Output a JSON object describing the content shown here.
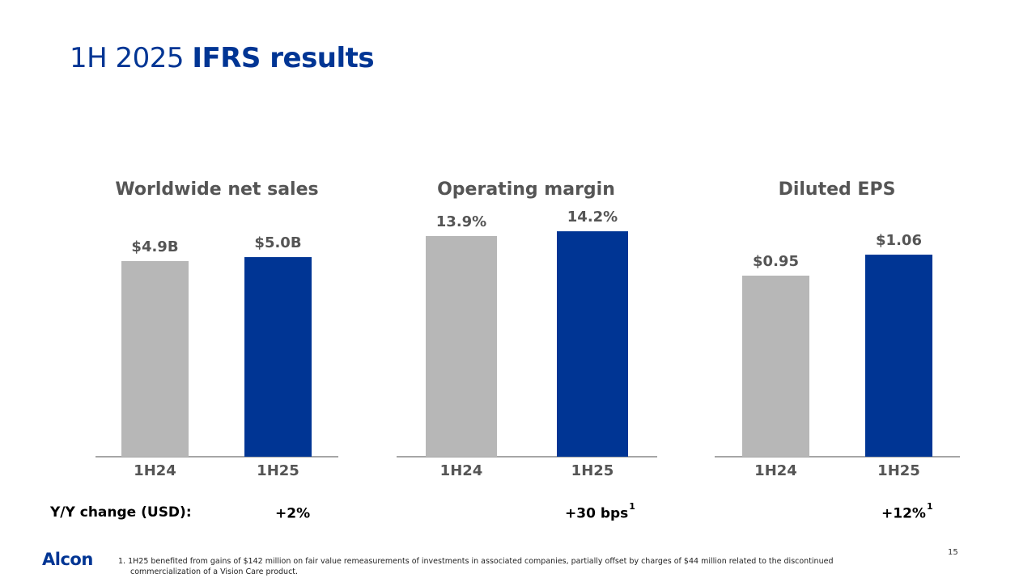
{
  "title": {
    "light": "1H 2025",
    "bold": "IFRS results"
  },
  "colors": {
    "prior": "#b7b7b7",
    "current": "#003594",
    "axis": "#888888",
    "label": "#555555"
  },
  "chart_data": [
    {
      "type": "bar",
      "title": "Worldwide net sales",
      "categories": [
        "1H24",
        "1H25"
      ],
      "values": [
        4.9,
        5.0
      ],
      "value_labels": [
        "$4.9B",
        "$5.0B"
      ],
      "yoy": "+2%",
      "yoy_footnote": ""
    },
    {
      "type": "bar",
      "title": "Operating margin",
      "categories": [
        "1H24",
        "1H25"
      ],
      "values": [
        13.9,
        14.2
      ],
      "value_labels": [
        "13.9%",
        "14.2%"
      ],
      "yoy": "+30 bps",
      "yoy_footnote": "1"
    },
    {
      "type": "bar",
      "title": "Diluted EPS",
      "categories": [
        "1H24",
        "1H25"
      ],
      "values": [
        0.95,
        1.06
      ],
      "value_labels": [
        "$0.95",
        "$1.06"
      ],
      "yoy": "+12%",
      "yoy_footnote": "1"
    }
  ],
  "yoy_label": "Y/Y change (USD):",
  "logo": "Alcon",
  "page_number": "15",
  "footnote": {
    "line1": "1. 1H25 benefited from gains of $142 million on fair value remeasurements of investments in associated companies, partially offset by charges of $44 million related to the discontinued",
    "line2": "commercialization of a Vision Care product."
  }
}
